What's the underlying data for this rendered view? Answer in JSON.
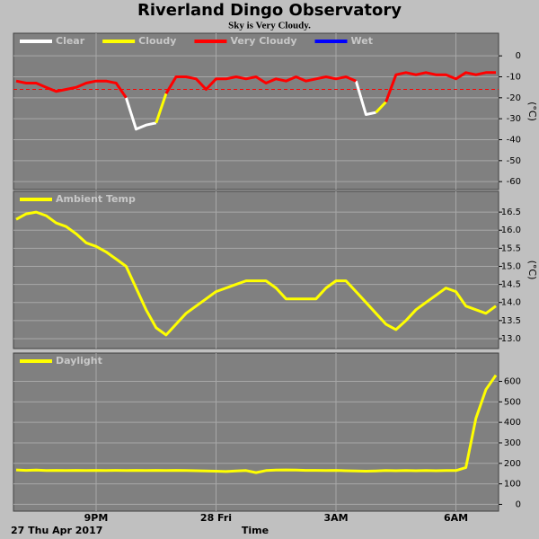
{
  "title": "Riverland Dingo Observatory",
  "subtitle": "Sky is Very Cloudy.",
  "x_axis": {
    "label": "Time",
    "start": "27 Thu Apr 2017",
    "xlim": [
      19,
      31
    ],
    "xticks": [
      {
        "value": 21,
        "label": "9PM"
      },
      {
        "value": 24,
        "label": "28 Fri"
      },
      {
        "value": 27,
        "label": "3AM"
      },
      {
        "value": 30,
        "label": "6AM"
      }
    ],
    "x": [
      19,
      19.25,
      19.5,
      19.75,
      20,
      20.25,
      20.5,
      20.75,
      21,
      21.25,
      21.5,
      21.75,
      22,
      22.25,
      22.5,
      22.75,
      23,
      23.25,
      23.5,
      23.75,
      24,
      24.25,
      24.5,
      24.75,
      25,
      25.25,
      25.5,
      25.75,
      26,
      26.25,
      26.5,
      26.75,
      27,
      27.25,
      27.5,
      27.75,
      28,
      28.25,
      28.5,
      28.75,
      29,
      29.25,
      29.5,
      29.75,
      30,
      30.25,
      30.5,
      30.75,
      31
    ]
  },
  "chart_data": [
    {
      "type": "line",
      "ylabel": "(°C)",
      "grid": true,
      "ylim": [
        -62.5,
        9.5
      ],
      "yticks": [
        0,
        -10,
        -20,
        -30,
        -40,
        -50,
        -60
      ],
      "thresholds": [
        {
          "value": -16,
          "color": "#ff0000"
        }
      ],
      "series": [
        {
          "name": "Clear",
          "color": "#ffffff",
          "values": [
            null,
            null,
            null,
            null,
            null,
            null,
            null,
            null,
            null,
            null,
            null,
            -20,
            -35,
            -33,
            -32,
            null,
            null,
            null,
            null,
            null,
            null,
            null,
            null,
            null,
            null,
            null,
            null,
            null,
            null,
            null,
            null,
            null,
            null,
            null,
            -12,
            -28,
            -27,
            null,
            null,
            null,
            null,
            null,
            null,
            null,
            null,
            null,
            null,
            null,
            null
          ]
        },
        {
          "name": "Cloudy",
          "color": "#ffff00",
          "values": [
            null,
            null,
            null,
            null,
            null,
            null,
            null,
            null,
            null,
            null,
            null,
            null,
            null,
            null,
            -32,
            -18,
            null,
            null,
            null,
            null,
            null,
            null,
            null,
            null,
            null,
            null,
            null,
            null,
            null,
            null,
            null,
            null,
            null,
            null,
            null,
            null,
            -27,
            -22,
            null,
            null,
            null,
            null,
            null,
            null,
            null,
            null,
            null,
            null,
            null
          ]
        },
        {
          "name": "Very Cloudy",
          "color": "#ff0000",
          "values": [
            -12,
            -13,
            -13,
            -15,
            -17,
            -16,
            -15,
            -13,
            -12,
            -12,
            -13,
            -20,
            null,
            null,
            null,
            -18,
            -10,
            -10,
            -11,
            -16,
            -11,
            -11,
            -10,
            -11,
            -10,
            -13,
            -11,
            -12,
            -10,
            -12,
            -11,
            -10,
            -11,
            -10,
            -12,
            null,
            null,
            -22,
            -9,
            -8,
            -9,
            -8,
            -9,
            -9,
            -11,
            -8,
            -9,
            -8,
            -8
          ]
        },
        {
          "name": "Wet",
          "color": "#0000ff",
          "values": [
            null,
            null,
            null,
            null,
            null,
            null,
            null,
            null,
            null,
            null,
            null,
            null,
            null,
            null,
            null,
            null,
            null,
            null,
            null,
            null,
            null,
            null,
            null,
            null,
            null,
            null,
            null,
            null,
            null,
            null,
            null,
            null,
            null,
            null,
            null,
            null,
            null,
            null,
            null,
            null,
            null,
            null,
            null,
            null,
            null,
            null,
            null,
            null,
            null
          ]
        }
      ]
    },
    {
      "type": "line",
      "ylabel": "(°C)",
      "grid": true,
      "ylim": [
        12.8,
        17.0
      ],
      "yticks": [
        {
          "value": 13,
          "label": "13.0"
        },
        13.5,
        {
          "value": 14,
          "label": "14.0"
        },
        14.5,
        {
          "value": 15,
          "label": "15.0"
        },
        15.5,
        {
          "value": 16,
          "label": "16.0"
        },
        16.5
      ],
      "series": [
        {
          "name": "Ambient Temp",
          "color": "#ffff00",
          "values": [
            16.3,
            16.45,
            16.5,
            16.4,
            16.2,
            16.1,
            15.9,
            15.65,
            15.55,
            15.4,
            15.2,
            15.0,
            14.4,
            13.8,
            13.3,
            13.1,
            13.4,
            13.7,
            13.9,
            14.1,
            14.3,
            14.4,
            14.5,
            14.6,
            14.6,
            14.6,
            14.4,
            14.1,
            14.1,
            14.1,
            14.1,
            14.4,
            14.6,
            14.6,
            14.3,
            14.0,
            13.7,
            13.4,
            13.25,
            13.5,
            13.8,
            14.0,
            14.2,
            14.4,
            14.3,
            13.9,
            13.8,
            13.7,
            13.9
          ]
        }
      ]
    },
    {
      "type": "line",
      "grid": true,
      "ylim": [
        -20,
        725
      ],
      "yticks": [
        0,
        100,
        200,
        300,
        400,
        500,
        600
      ],
      "series": [
        {
          "name": "Daylight",
          "color": "#ffff00",
          "values": [
            168,
            166,
            167,
            165,
            166,
            165,
            166,
            165,
            166,
            165,
            166,
            165,
            166,
            165,
            166,
            165,
            166,
            165,
            164,
            163,
            162,
            160,
            163,
            165,
            155,
            165,
            167,
            168,
            167,
            166,
            166,
            165,
            166,
            164,
            163,
            162,
            163,
            165,
            164,
            165,
            164,
            165,
            164,
            165,
            165,
            180,
            420,
            560,
            630
          ]
        }
      ]
    }
  ]
}
